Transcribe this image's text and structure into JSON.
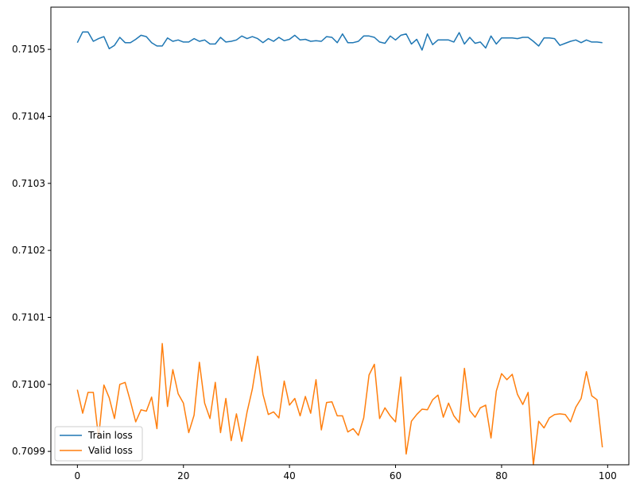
{
  "chart_data": {
    "type": "line",
    "title": "",
    "xlabel": "",
    "ylabel": "",
    "xlim": [
      -5,
      104
    ],
    "ylim": [
      0.70988,
      0.710563
    ],
    "x_ticks": [
      0,
      20,
      40,
      60,
      80,
      100
    ],
    "x_tick_labels": [
      "0",
      "20",
      "40",
      "60",
      "80",
      "100"
    ],
    "y_ticks": [
      0.7099,
      0.71,
      0.7101,
      0.7102,
      0.7103,
      0.7104,
      0.7105
    ],
    "y_tick_labels": [
      "0.7099",
      "0.7100",
      "0.7101",
      "0.7102",
      "0.7103",
      "0.7104",
      "0.7105"
    ],
    "grid": false,
    "legend_position": "lower-left",
    "series": [
      {
        "name": "Train loss",
        "color": "#1f77b4",
        "x": [
          0,
          1,
          2,
          3,
          4,
          5,
          6,
          7,
          8,
          9,
          10,
          11,
          12,
          13,
          14,
          15,
          16,
          17,
          18,
          19,
          20,
          21,
          22,
          23,
          24,
          25,
          26,
          27,
          28,
          29,
          30,
          31,
          32,
          33,
          34,
          35,
          36,
          37,
          38,
          39,
          40,
          41,
          42,
          43,
          44,
          45,
          46,
          47,
          48,
          49,
          50,
          51,
          52,
          53,
          54,
          55,
          56,
          57,
          58,
          59,
          60,
          61,
          62,
          63,
          64,
          65,
          66,
          67,
          68,
          69,
          70,
          71,
          72,
          73,
          74,
          75,
          76,
          77,
          78,
          79,
          80,
          81,
          82,
          83,
          84,
          85,
          86,
          87,
          88,
          89,
          90,
          91,
          92,
          93,
          94,
          95,
          96,
          97,
          98,
          99
        ],
        "values": [
          0.71051,
          0.710526,
          0.710526,
          0.710512,
          0.710516,
          0.710519,
          0.710501,
          0.710506,
          0.710518,
          0.71051,
          0.71051,
          0.710515,
          0.710521,
          0.710519,
          0.71051,
          0.710505,
          0.710505,
          0.710517,
          0.710512,
          0.710514,
          0.710511,
          0.710511,
          0.710516,
          0.710512,
          0.710514,
          0.710508,
          0.710508,
          0.710518,
          0.710511,
          0.710512,
          0.710514,
          0.71052,
          0.710516,
          0.710519,
          0.710516,
          0.71051,
          0.710516,
          0.710512,
          0.710518,
          0.710513,
          0.710515,
          0.710521,
          0.710514,
          0.710515,
          0.710512,
          0.710513,
          0.710512,
          0.710519,
          0.710518,
          0.71051,
          0.710523,
          0.71051,
          0.71051,
          0.710512,
          0.71052,
          0.71052,
          0.710518,
          0.710511,
          0.710509,
          0.71052,
          0.710514,
          0.710521,
          0.710523,
          0.710508,
          0.710515,
          0.710499,
          0.710523,
          0.710507,
          0.710514,
          0.710514,
          0.710514,
          0.710511,
          0.710525,
          0.710508,
          0.710518,
          0.710509,
          0.710511,
          0.710502,
          0.71052,
          0.710508,
          0.710517,
          0.710517,
          0.710517,
          0.710516,
          0.710518,
          0.710518,
          0.710512,
          0.710505,
          0.710517,
          0.710517,
          0.710516,
          0.710506,
          0.710509,
          0.710512,
          0.710514,
          0.71051,
          0.710514,
          0.710511,
          0.710511,
          0.71051
        ]
      },
      {
        "name": "Valid loss",
        "color": "#ff7f0e",
        "x": [
          0,
          1,
          2,
          3,
          4,
          5,
          6,
          7,
          8,
          9,
          10,
          11,
          12,
          13,
          14,
          15,
          16,
          17,
          18,
          19,
          20,
          21,
          22,
          23,
          24,
          25,
          26,
          27,
          28,
          29,
          30,
          31,
          32,
          33,
          34,
          35,
          36,
          37,
          38,
          39,
          40,
          41,
          42,
          43,
          44,
          45,
          46,
          47,
          48,
          49,
          50,
          51,
          52,
          53,
          54,
          55,
          56,
          57,
          58,
          59,
          60,
          61,
          62,
          63,
          64,
          65,
          66,
          67,
          68,
          69,
          70,
          71,
          72,
          73,
          74,
          75,
          76,
          77,
          78,
          79,
          80,
          81,
          82,
          83,
          84,
          85,
          86,
          87,
          88,
          89,
          90,
          91,
          92,
          93,
          94,
          95,
          96,
          97,
          98,
          99
        ],
        "values": [
          0.709992,
          0.709957,
          0.709988,
          0.709988,
          0.70992,
          0.709999,
          0.70998,
          0.709949,
          0.71,
          0.710003,
          0.709975,
          0.709944,
          0.709962,
          0.70996,
          0.709981,
          0.709934,
          0.710061,
          0.709967,
          0.710022,
          0.709986,
          0.709972,
          0.709928,
          0.709954,
          0.710033,
          0.709972,
          0.709949,
          0.710003,
          0.709928,
          0.709979,
          0.709916,
          0.709956,
          0.709915,
          0.709959,
          0.709993,
          0.710042,
          0.709985,
          0.709955,
          0.709959,
          0.70995,
          0.710005,
          0.709969,
          0.709979,
          0.709953,
          0.709982,
          0.709957,
          0.710007,
          0.709932,
          0.709973,
          0.709974,
          0.709953,
          0.709953,
          0.709929,
          0.709934,
          0.709924,
          0.70995,
          0.710014,
          0.71003,
          0.709949,
          0.709965,
          0.709953,
          0.709944,
          0.710011,
          0.709896,
          0.709945,
          0.709955,
          0.709963,
          0.709962,
          0.709977,
          0.709984,
          0.709951,
          0.709972,
          0.709953,
          0.709943,
          0.710024,
          0.709961,
          0.709951,
          0.709965,
          0.709969,
          0.70992,
          0.70999,
          0.710016,
          0.710007,
          0.710015,
          0.709985,
          0.70997,
          0.709988,
          0.70988,
          0.709945,
          0.709935,
          0.70995,
          0.709955,
          0.709956,
          0.709955,
          0.709944,
          0.709966,
          0.709979,
          0.710019,
          0.709983,
          0.709977,
          0.709906
        ]
      }
    ]
  }
}
